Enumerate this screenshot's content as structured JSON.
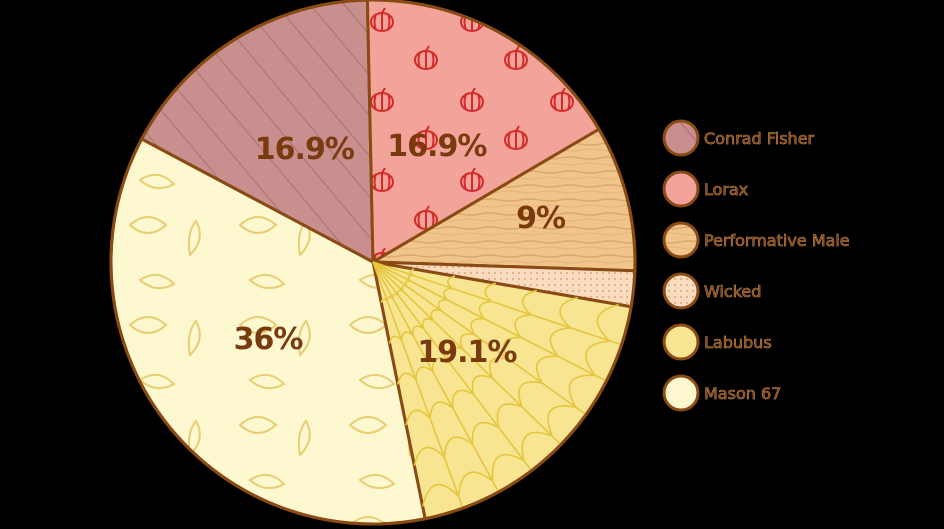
{
  "chart_data": {
    "type": "pie",
    "title": "",
    "slices": [
      {
        "label": "Conrad Fisher",
        "value": 16.9,
        "display": "16.9%",
        "color": "#c98f8f",
        "pattern": "stripes"
      },
      {
        "label": "Lorax",
        "value": 16.9,
        "display": "16.9%",
        "color": "#f2a49a",
        "pattern": "pumpkins"
      },
      {
        "label": "Performative Male",
        "value": 9,
        "display": "9%",
        "color": "#f0c48a",
        "pattern": "wood"
      },
      {
        "label": "Wicked",
        "value": 2.2,
        "display": "",
        "color": "#f9dcc0",
        "pattern": "dots"
      },
      {
        "label": "Labubus",
        "value": 19.1,
        "display": "19.1%",
        "color": "#f7e592",
        "pattern": "web"
      },
      {
        "label": "Mason 67",
        "value": 36,
        "display": "36%",
        "color": "#fdf8cf",
        "pattern": "leaves"
      }
    ],
    "legend_position": "right",
    "outline_color": "#8a4a14"
  }
}
